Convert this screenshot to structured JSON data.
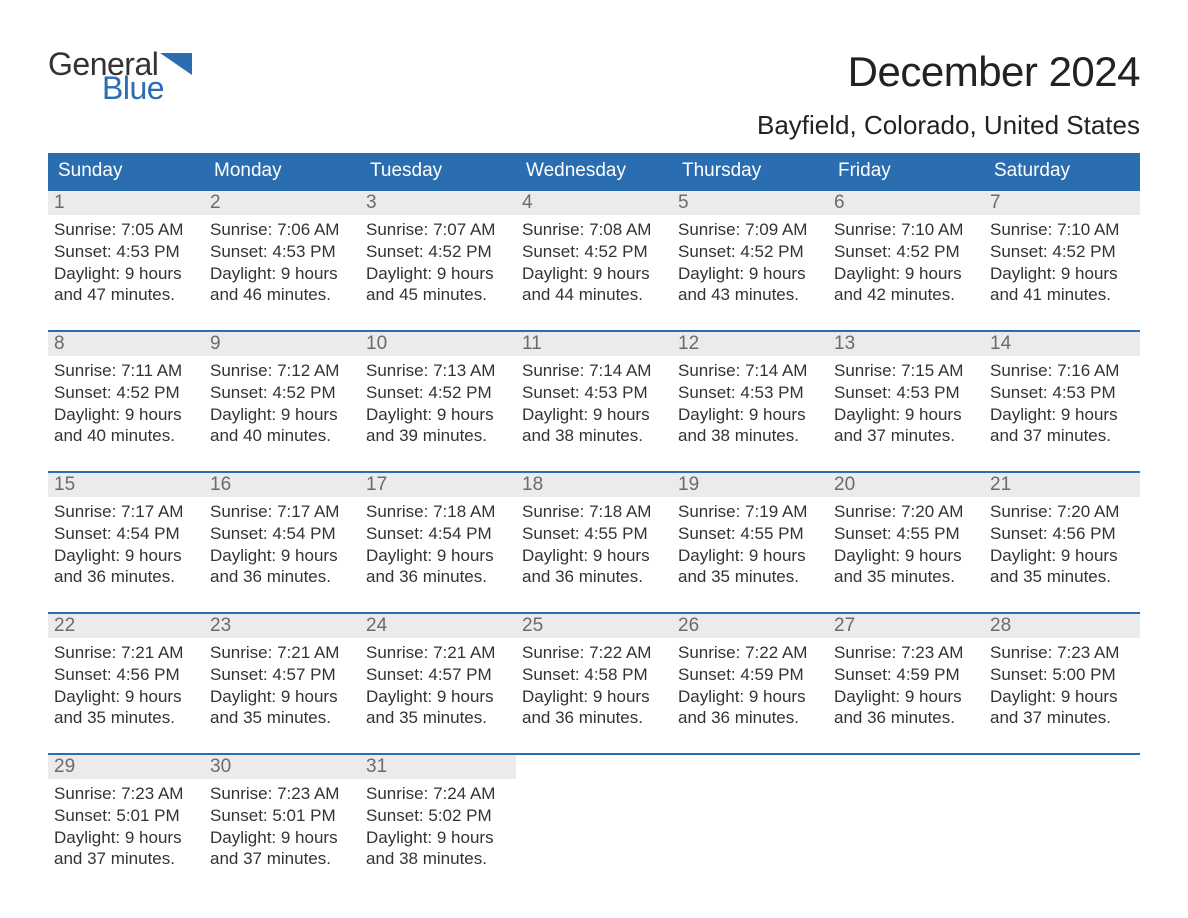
{
  "brand": {
    "word1": "General",
    "word2": "Blue",
    "word1_color": "#333333",
    "word2_color": "#2a6db0",
    "flag_color": "#2a6db0",
    "fontsize": 32
  },
  "title": {
    "month": "December 2024",
    "month_fontsize": 42,
    "month_color": "#222222",
    "location": "Bayfield, Colorado, United States",
    "location_fontsize": 26,
    "location_color": "#222222"
  },
  "colors": {
    "header_bg": "#2a6db0",
    "header_text": "#ffffff",
    "daynum_bg": "#ebebeb",
    "daynum_text": "#6b6b6b",
    "body_text": "#333333",
    "week_border": "#2a6db0",
    "page_bg": "#ffffff"
  },
  "typography": {
    "weekday_fontsize": 19,
    "daynum_fontsize": 19,
    "body_fontsize": 17,
    "font_family": "Arial"
  },
  "weekdays": [
    "Sunday",
    "Monday",
    "Tuesday",
    "Wednesday",
    "Thursday",
    "Friday",
    "Saturday"
  ],
  "weeks": [
    [
      {
        "n": "1",
        "sr": "Sunrise: 7:05 AM",
        "ss": "Sunset: 4:53 PM",
        "d1": "Daylight: 9 hours",
        "d2": "and 47 minutes."
      },
      {
        "n": "2",
        "sr": "Sunrise: 7:06 AM",
        "ss": "Sunset: 4:53 PM",
        "d1": "Daylight: 9 hours",
        "d2": "and 46 minutes."
      },
      {
        "n": "3",
        "sr": "Sunrise: 7:07 AM",
        "ss": "Sunset: 4:52 PM",
        "d1": "Daylight: 9 hours",
        "d2": "and 45 minutes."
      },
      {
        "n": "4",
        "sr": "Sunrise: 7:08 AM",
        "ss": "Sunset: 4:52 PM",
        "d1": "Daylight: 9 hours",
        "d2": "and 44 minutes."
      },
      {
        "n": "5",
        "sr": "Sunrise: 7:09 AM",
        "ss": "Sunset: 4:52 PM",
        "d1": "Daylight: 9 hours",
        "d2": "and 43 minutes."
      },
      {
        "n": "6",
        "sr": "Sunrise: 7:10 AM",
        "ss": "Sunset: 4:52 PM",
        "d1": "Daylight: 9 hours",
        "d2": "and 42 minutes."
      },
      {
        "n": "7",
        "sr": "Sunrise: 7:10 AM",
        "ss": "Sunset: 4:52 PM",
        "d1": "Daylight: 9 hours",
        "d2": "and 41 minutes."
      }
    ],
    [
      {
        "n": "8",
        "sr": "Sunrise: 7:11 AM",
        "ss": "Sunset: 4:52 PM",
        "d1": "Daylight: 9 hours",
        "d2": "and 40 minutes."
      },
      {
        "n": "9",
        "sr": "Sunrise: 7:12 AM",
        "ss": "Sunset: 4:52 PM",
        "d1": "Daylight: 9 hours",
        "d2": "and 40 minutes."
      },
      {
        "n": "10",
        "sr": "Sunrise: 7:13 AM",
        "ss": "Sunset: 4:52 PM",
        "d1": "Daylight: 9 hours",
        "d2": "and 39 minutes."
      },
      {
        "n": "11",
        "sr": "Sunrise: 7:14 AM",
        "ss": "Sunset: 4:53 PM",
        "d1": "Daylight: 9 hours",
        "d2": "and 38 minutes."
      },
      {
        "n": "12",
        "sr": "Sunrise: 7:14 AM",
        "ss": "Sunset: 4:53 PM",
        "d1": "Daylight: 9 hours",
        "d2": "and 38 minutes."
      },
      {
        "n": "13",
        "sr": "Sunrise: 7:15 AM",
        "ss": "Sunset: 4:53 PM",
        "d1": "Daylight: 9 hours",
        "d2": "and 37 minutes."
      },
      {
        "n": "14",
        "sr": "Sunrise: 7:16 AM",
        "ss": "Sunset: 4:53 PM",
        "d1": "Daylight: 9 hours",
        "d2": "and 37 minutes."
      }
    ],
    [
      {
        "n": "15",
        "sr": "Sunrise: 7:17 AM",
        "ss": "Sunset: 4:54 PM",
        "d1": "Daylight: 9 hours",
        "d2": "and 36 minutes."
      },
      {
        "n": "16",
        "sr": "Sunrise: 7:17 AM",
        "ss": "Sunset: 4:54 PM",
        "d1": "Daylight: 9 hours",
        "d2": "and 36 minutes."
      },
      {
        "n": "17",
        "sr": "Sunrise: 7:18 AM",
        "ss": "Sunset: 4:54 PM",
        "d1": "Daylight: 9 hours",
        "d2": "and 36 minutes."
      },
      {
        "n": "18",
        "sr": "Sunrise: 7:18 AM",
        "ss": "Sunset: 4:55 PM",
        "d1": "Daylight: 9 hours",
        "d2": "and 36 minutes."
      },
      {
        "n": "19",
        "sr": "Sunrise: 7:19 AM",
        "ss": "Sunset: 4:55 PM",
        "d1": "Daylight: 9 hours",
        "d2": "and 35 minutes."
      },
      {
        "n": "20",
        "sr": "Sunrise: 7:20 AM",
        "ss": "Sunset: 4:55 PM",
        "d1": "Daylight: 9 hours",
        "d2": "and 35 minutes."
      },
      {
        "n": "21",
        "sr": "Sunrise: 7:20 AM",
        "ss": "Sunset: 4:56 PM",
        "d1": "Daylight: 9 hours",
        "d2": "and 35 minutes."
      }
    ],
    [
      {
        "n": "22",
        "sr": "Sunrise: 7:21 AM",
        "ss": "Sunset: 4:56 PM",
        "d1": "Daylight: 9 hours",
        "d2": "and 35 minutes."
      },
      {
        "n": "23",
        "sr": "Sunrise: 7:21 AM",
        "ss": "Sunset: 4:57 PM",
        "d1": "Daylight: 9 hours",
        "d2": "and 35 minutes."
      },
      {
        "n": "24",
        "sr": "Sunrise: 7:21 AM",
        "ss": "Sunset: 4:57 PM",
        "d1": "Daylight: 9 hours",
        "d2": "and 35 minutes."
      },
      {
        "n": "25",
        "sr": "Sunrise: 7:22 AM",
        "ss": "Sunset: 4:58 PM",
        "d1": "Daylight: 9 hours",
        "d2": "and 36 minutes."
      },
      {
        "n": "26",
        "sr": "Sunrise: 7:22 AM",
        "ss": "Sunset: 4:59 PM",
        "d1": "Daylight: 9 hours",
        "d2": "and 36 minutes."
      },
      {
        "n": "27",
        "sr": "Sunrise: 7:23 AM",
        "ss": "Sunset: 4:59 PM",
        "d1": "Daylight: 9 hours",
        "d2": "and 36 minutes."
      },
      {
        "n": "28",
        "sr": "Sunrise: 7:23 AM",
        "ss": "Sunset: 5:00 PM",
        "d1": "Daylight: 9 hours",
        "d2": "and 37 minutes."
      }
    ],
    [
      {
        "n": "29",
        "sr": "Sunrise: 7:23 AM",
        "ss": "Sunset: 5:01 PM",
        "d1": "Daylight: 9 hours",
        "d2": "and 37 minutes."
      },
      {
        "n": "30",
        "sr": "Sunrise: 7:23 AM",
        "ss": "Sunset: 5:01 PM",
        "d1": "Daylight: 9 hours",
        "d2": "and 37 minutes."
      },
      {
        "n": "31",
        "sr": "Sunrise: 7:24 AM",
        "ss": "Sunset: 5:02 PM",
        "d1": "Daylight: 9 hours",
        "d2": "and 38 minutes."
      },
      {
        "empty": true
      },
      {
        "empty": true
      },
      {
        "empty": true
      },
      {
        "empty": true
      }
    ]
  ]
}
